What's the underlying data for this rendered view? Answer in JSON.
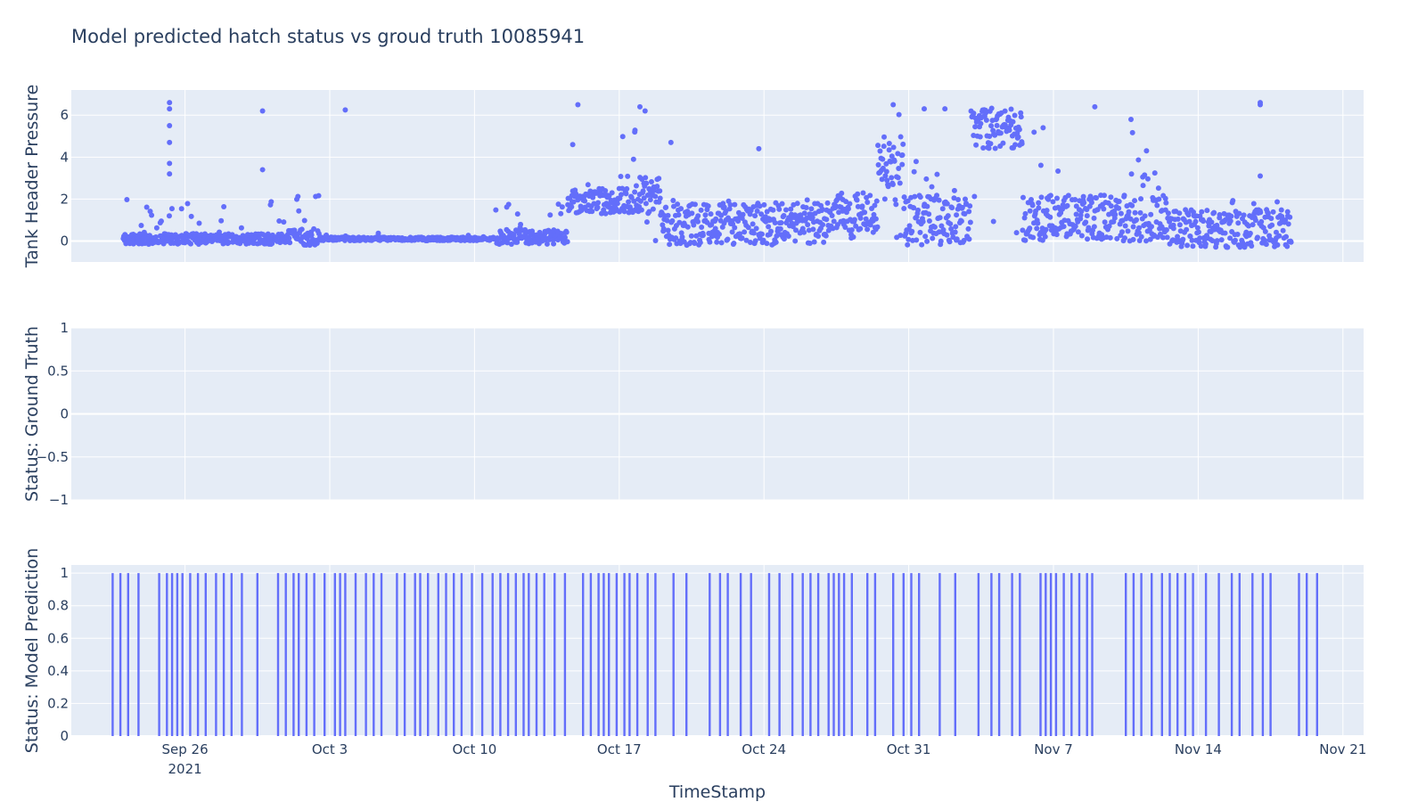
{
  "chart_data": {
    "title": "Model predicted hatch status vs groud truth 10085941",
    "xlabel": "TimeStamp",
    "x_range": [
      "2021-09-20T12:00",
      "2021-11-22T00:00"
    ],
    "x_ticks": [
      {
        "date": "2021-09-26",
        "label": "Sep 26",
        "sublabel": "2021"
      },
      {
        "date": "2021-10-03",
        "label": "Oct 3",
        "sublabel": ""
      },
      {
        "date": "2021-10-10",
        "label": "Oct 10",
        "sublabel": ""
      },
      {
        "date": "2021-10-17",
        "label": "Oct 17",
        "sublabel": ""
      },
      {
        "date": "2021-10-24",
        "label": "Oct 24",
        "sublabel": ""
      },
      {
        "date": "2021-10-31",
        "label": "Oct 31",
        "sublabel": ""
      },
      {
        "date": "2021-11-07",
        "label": "Nov 7",
        "sublabel": ""
      },
      {
        "date": "2021-11-14",
        "label": "Nov 14",
        "sublabel": ""
      },
      {
        "date": "2021-11-21",
        "label": "Nov 21",
        "sublabel": ""
      }
    ],
    "colors": {
      "marker": "#636efa",
      "plot_bg": "#e5ecf6",
      "grid": "#ffffff",
      "text": "#2a3f5f"
    },
    "grid": true,
    "subplots": [
      {
        "type": "scatter",
        "ylabel": "Tank Header Pressure",
        "ylim": [
          -1,
          7.2
        ],
        "yticks": [
          0,
          2,
          4,
          6
        ],
        "ytick_labels": [
          "0",
          "2",
          "4",
          "6"
        ],
        "data_start": "2021-09-23T00:00",
        "data_end": "2021-11-18T12:00",
        "segments": [
          {
            "start": "2021-09-23T00:00",
            "end": "2021-10-01T00:00",
            "base": 0.1,
            "spread": 0.25,
            "spike_max": 2.0,
            "spike_prob": 0.12
          },
          {
            "start": "2021-10-01T00:00",
            "end": "2021-10-02T12:00",
            "base": 0.2,
            "spread": 0.4,
            "spike_max": 2.2,
            "spike_prob": 0.2
          },
          {
            "start": "2021-10-02T12:00",
            "end": "2021-10-11T00:00",
            "base": 0.1,
            "spread": 0.08,
            "spike_max": 0.4,
            "spike_prob": 0.02
          },
          {
            "start": "2021-10-11T00:00",
            "end": "2021-10-14T12:00",
            "base": 0.2,
            "spread": 0.35,
            "spike_max": 2.0,
            "spike_prob": 0.12
          },
          {
            "start": "2021-10-14T12:00",
            "end": "2021-10-17T00:00",
            "base": 1.9,
            "spread": 0.6,
            "spike_max": 3.2,
            "spike_prob": 0.1
          },
          {
            "start": "2021-10-17T00:00",
            "end": "2021-10-19T00:00",
            "base": 2.2,
            "spread": 0.9,
            "spike_max": 6.4,
            "spike_prob": 0.1
          },
          {
            "start": "2021-10-19T00:00",
            "end": "2021-10-27T00:00",
            "base": 0.8,
            "spread": 1.0,
            "spike_max": 2.0,
            "spike_prob": 0.15
          },
          {
            "start": "2021-10-27T00:00",
            "end": "2021-10-29T12:00",
            "base": 1.4,
            "spread": 0.9,
            "spike_max": 2.0,
            "spike_prob": 0.15
          },
          {
            "start": "2021-10-29T12:00",
            "end": "2021-10-30T18:00",
            "base": 3.8,
            "spread": 1.2,
            "spike_max": 6.2,
            "spike_prob": 0.15
          },
          {
            "start": "2021-10-30T18:00",
            "end": "2021-11-03T00:00",
            "base": 1.0,
            "spread": 1.2,
            "spike_max": 4.5,
            "spike_prob": 0.12
          },
          {
            "start": "2021-11-03T00:00",
            "end": "2021-11-05T12:00",
            "base": 5.3,
            "spread": 1.0,
            "spike_max": 6.5,
            "spike_prob": 0.1
          },
          {
            "start": "2021-11-05T12:00",
            "end": "2021-11-12T12:00",
            "base": 1.1,
            "spread": 1.1,
            "spike_max": 5.5,
            "spike_prob": 0.1
          },
          {
            "start": "2021-11-12T12:00",
            "end": "2021-11-18T12:00",
            "base": 0.6,
            "spread": 0.9,
            "spike_max": 2.0,
            "spike_prob": 0.12
          }
        ],
        "outliers": [
          {
            "x": "2021-09-25T06:00",
            "y": 6.6
          },
          {
            "x": "2021-09-25T06:00",
            "y": 6.3
          },
          {
            "x": "2021-09-25T06:00",
            "y": 5.5
          },
          {
            "x": "2021-09-25T06:00",
            "y": 4.7
          },
          {
            "x": "2021-09-25T06:00",
            "y": 3.7
          },
          {
            "x": "2021-09-25T06:00",
            "y": 3.2
          },
          {
            "x": "2021-09-29T18:00",
            "y": 6.2
          },
          {
            "x": "2021-09-29T18:00",
            "y": 3.4
          },
          {
            "x": "2021-10-03T18:00",
            "y": 6.25
          },
          {
            "x": "2021-10-15T00:00",
            "y": 6.5
          },
          {
            "x": "2021-10-14T18:00",
            "y": 4.6
          },
          {
            "x": "2021-10-18T00:00",
            "y": 6.4
          },
          {
            "x": "2021-10-18T06:00",
            "y": 6.2
          },
          {
            "x": "2021-10-17T18:00",
            "y": 5.2
          },
          {
            "x": "2021-10-19T12:00",
            "y": 4.7
          },
          {
            "x": "2021-10-23T18:00",
            "y": 4.4
          },
          {
            "x": "2021-10-30T06:00",
            "y": 6.5
          },
          {
            "x": "2021-10-31T18:00",
            "y": 6.3
          },
          {
            "x": "2021-11-01T18:00",
            "y": 6.3
          },
          {
            "x": "2021-11-09T00:00",
            "y": 6.4
          },
          {
            "x": "2021-11-10T18:00",
            "y": 5.8
          },
          {
            "x": "2021-11-17T00:00",
            "y": 6.6
          },
          {
            "x": "2021-11-17T00:00",
            "y": 6.5
          },
          {
            "x": "2021-11-17T00:00",
            "y": 3.1
          },
          {
            "x": "2021-11-06T12:00",
            "y": 5.4
          },
          {
            "x": "2021-11-11T12:00",
            "y": 4.3
          }
        ]
      },
      {
        "type": "scatter",
        "ylabel": "Status: Ground Truth",
        "ylim": [
          -1,
          1
        ],
        "yticks": [
          1,
          0.5,
          0,
          -0.5,
          -1
        ],
        "ytick_labels": [
          "1",
          "0.5",
          "0",
          "−0.5",
          "−1"
        ],
        "points": []
      },
      {
        "type": "bar",
        "ylabel": "Status: Model Prediction",
        "ylim": [
          0,
          1.05
        ],
        "yticks": [
          0,
          0.2,
          0.4,
          0.6,
          0.8,
          1
        ],
        "ytick_labels": [
          "0",
          "0.2",
          "0.4",
          "0.6",
          "0.8",
          "1"
        ],
        "bar_value": 1,
        "bar_dates": [
          "2021-09-22T12:00",
          "2021-09-22T21:00",
          "2021-09-23T06:00",
          "2021-09-23T18:00",
          "2021-09-24T18:00",
          "2021-09-25T03:00",
          "2021-09-25T09:00",
          "2021-09-25T15:00",
          "2021-09-25T21:00",
          "2021-09-26T06:00",
          "2021-09-26T15:00",
          "2021-09-27T00:00",
          "2021-09-27T12:00",
          "2021-09-27T21:00",
          "2021-09-28T06:00",
          "2021-09-28T18:00",
          "2021-09-29T12:00",
          "2021-09-30T12:00",
          "2021-09-30T21:00",
          "2021-10-01T06:00",
          "2021-10-01T12:00",
          "2021-10-01T21:00",
          "2021-10-02T06:00",
          "2021-10-02T18:00",
          "2021-10-03T06:00",
          "2021-10-03T12:00",
          "2021-10-03T18:00",
          "2021-10-04T06:00",
          "2021-10-04T18:00",
          "2021-10-05T03:00",
          "2021-10-05T12:00",
          "2021-10-06T06:00",
          "2021-10-06T15:00",
          "2021-10-07T03:00",
          "2021-10-07T09:00",
          "2021-10-07T18:00",
          "2021-10-08T06:00",
          "2021-10-08T15:00",
          "2021-10-09T00:00",
          "2021-10-09T09:00",
          "2021-10-09T21:00",
          "2021-10-10T09:00",
          "2021-10-10T21:00",
          "2021-10-11T06:00",
          "2021-10-11T15:00",
          "2021-10-12T00:00",
          "2021-10-12T09:00",
          "2021-10-12T15:00",
          "2021-10-13T00:00",
          "2021-10-13T09:00",
          "2021-10-13T21:00",
          "2021-10-14T09:00",
          "2021-10-15T06:00",
          "2021-10-15T15:00",
          "2021-10-16T00:00",
          "2021-10-16T06:00",
          "2021-10-16T12:00",
          "2021-10-16T21:00",
          "2021-10-17T06:00",
          "2021-10-17T12:00",
          "2021-10-17T21:00",
          "2021-10-18T09:00",
          "2021-10-18T18:00",
          "2021-10-19T15:00",
          "2021-10-20T06:00",
          "2021-10-21T09:00",
          "2021-10-21T21:00",
          "2021-10-22T06:00",
          "2021-10-22T21:00",
          "2021-10-23T09:00",
          "2021-10-24T06:00",
          "2021-10-24T18:00",
          "2021-10-25T09:00",
          "2021-10-25T21:00",
          "2021-10-26T06:00",
          "2021-10-26T15:00",
          "2021-10-27T03:00",
          "2021-10-27T09:00",
          "2021-10-27T15:00",
          "2021-10-27T21:00",
          "2021-10-28T06:00",
          "2021-10-29T00:00",
          "2021-10-29T09:00",
          "2021-10-30T06:00",
          "2021-10-30T18:00",
          "2021-10-31T03:00",
          "2021-10-31T12:00",
          "2021-11-01T12:00",
          "2021-11-02T06:00",
          "2021-11-03T09:00",
          "2021-11-04T00:00",
          "2021-11-04T09:00",
          "2021-11-05T00:00",
          "2021-11-05T09:00",
          "2021-11-06T09:00",
          "2021-11-06T15:00",
          "2021-11-06T21:00",
          "2021-11-07T03:00",
          "2021-11-07T12:00",
          "2021-11-07T21:00",
          "2021-11-08T06:00",
          "2021-11-08T15:00",
          "2021-11-08T21:00",
          "2021-11-10T12:00",
          "2021-11-10T21:00",
          "2021-11-11T06:00",
          "2021-11-11T18:00",
          "2021-11-12T06:00",
          "2021-11-12T15:00",
          "2021-11-13T00:00",
          "2021-11-13T09:00",
          "2021-11-13T18:00",
          "2021-11-14T09:00",
          "2021-11-15T00:00",
          "2021-11-15T15:00",
          "2021-11-16T00:00",
          "2021-11-16T15:00",
          "2021-11-17T03:00",
          "2021-11-17T12:00",
          "2021-11-18T21:00",
          "2021-11-19T06:00",
          "2021-11-19T18:00"
        ]
      }
    ]
  }
}
